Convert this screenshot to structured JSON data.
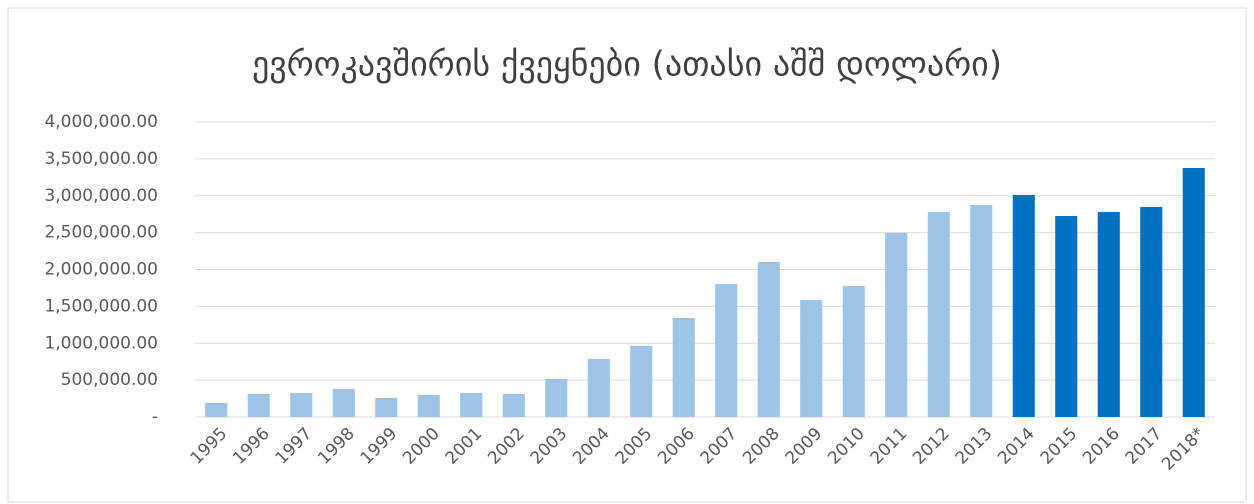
{
  "chart_data": {
    "type": "bar",
    "title": "ევროკავშირის ქვეყნები (ათასი აშშ დოლარი)",
    "categories": [
      "1995",
      "1996",
      "1997",
      "1998",
      "1999",
      "2000",
      "2001",
      "2002",
      "2003",
      "2004",
      "2005",
      "2006",
      "2007",
      "2008",
      "2009",
      "2010",
      "2011",
      "2012",
      "2013",
      "2014",
      "2015",
      "2016",
      "2017",
      "2018*"
    ],
    "values": [
      190000,
      312000,
      325000,
      380000,
      258000,
      298000,
      325000,
      312000,
      515000,
      787000,
      963000,
      1343000,
      1803000,
      2102000,
      1587000,
      1776000,
      2495000,
      2780000,
      2875000,
      3010000,
      2725000,
      2780000,
      2848000,
      3376000
    ],
    "colors": [
      "#9dc3e6",
      "#9dc3e6",
      "#9dc3e6",
      "#9dc3e6",
      "#9dc3e6",
      "#9dc3e6",
      "#9dc3e6",
      "#9dc3e6",
      "#9dc3e6",
      "#9dc3e6",
      "#9dc3e6",
      "#9dc3e6",
      "#9dc3e6",
      "#9dc3e6",
      "#9dc3e6",
      "#9dc3e6",
      "#9dc3e6",
      "#9dc3e6",
      "#9dc3e6",
      "#0070c0",
      "#0070c0",
      "#0070c0",
      "#0070c0",
      "#0070c0"
    ],
    "ylim": [
      0,
      4000000
    ],
    "yticks": [
      {
        "value": 0,
        "label": "-"
      },
      {
        "value": 500000,
        "label": "500,000.00"
      },
      {
        "value": 1000000,
        "label": "1,000,000.00"
      },
      {
        "value": 1500000,
        "label": "1,500,000.00"
      },
      {
        "value": 2000000,
        "label": "2,000,000.00"
      },
      {
        "value": 2500000,
        "label": "2,500,000.00"
      },
      {
        "value": 3000000,
        "label": "3,000,000.00"
      },
      {
        "value": 3500000,
        "label": "3,500,000.00"
      },
      {
        "value": 4000000,
        "label": "4,000,000.00"
      }
    ],
    "grid": true
  }
}
